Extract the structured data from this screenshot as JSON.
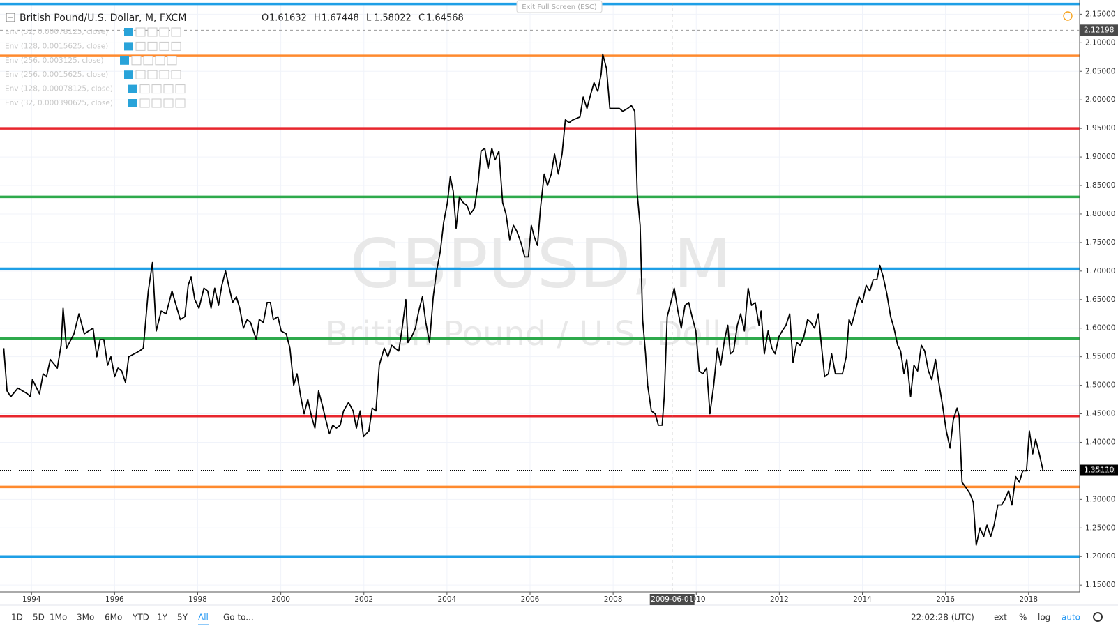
{
  "chart_data": {
    "type": "line",
    "title": "British Pound/U.S. Dollar, M, FXCM",
    "ohlc": [
      {
        "key": "O",
        "value": 1.61632
      },
      {
        "key": "H",
        "value": 1.67448
      },
      {
        "key": "L",
        "value": 1.58022
      },
      {
        "key": "C",
        "value": 1.64568
      }
    ],
    "indicators": [
      "Env (32, 0.00078125, close)",
      "Env (128, 0.0015625, close)",
      "Env (256, 0.003125, close)",
      "Env (256, 0.0015625, close)",
      "Env (128, 0.00078125, close)",
      "Env (32, 0.000390625, close)"
    ],
    "watermark": "GBPUSD, M",
    "watermark_subtitle": "British Pound / U.S. Dollar",
    "exit_button": "Exit Full Screen (ESC)",
    "series": [
      {
        "name": "GBPUSD",
        "color": "#000000",
        "x": [
          1993.33,
          1993.41,
          1993.5,
          1993.67,
          1993.9,
          1993.97,
          1994.02,
          1994.19,
          1994.28,
          1994.36,
          1994.45,
          1994.62,
          1994.71,
          1994.76,
          1994.84,
          1995.02,
          1995.14,
          1995.27,
          1995.48,
          1995.57,
          1995.65,
          1995.74,
          1995.83,
          1995.91,
          1996.0,
          1996.08,
          1996.17,
          1996.26,
          1996.34,
          1996.6,
          1996.69,
          1996.81,
          1996.91,
          1997.0,
          1997.12,
          1997.24,
          1997.38,
          1997.46,
          1997.58,
          1997.69,
          1997.77,
          1997.84,
          1997.93,
          1998.03,
          1998.15,
          1998.24,
          1998.32,
          1998.41,
          1998.5,
          1998.58,
          1998.67,
          1998.76,
          1998.84,
          1998.93,
          1999.01,
          1999.1,
          1999.19,
          1999.27,
          1999.41,
          1999.48,
          1999.58,
          1999.67,
          1999.75,
          1999.82,
          1999.93,
          2000.01,
          2000.13,
          2000.22,
          2000.31,
          2000.39,
          2000.48,
          2000.56,
          2000.65,
          2000.74,
          2000.82,
          2000.91,
          2001.0,
          2001.08,
          2001.17,
          2001.25,
          2001.34,
          2001.43,
          2001.51,
          2001.63,
          2001.74,
          2001.82,
          2001.91,
          2001.99,
          2002.12,
          2002.2,
          2002.29,
          2002.37,
          2002.49,
          2002.58,
          2002.67,
          2002.75,
          2002.84,
          2002.92,
          2003.01,
          2003.06,
          2003.15,
          2003.24,
          2003.32,
          2003.41,
          2003.49,
          2003.58,
          2003.67,
          2003.75,
          2003.84,
          2003.92,
          2004.01,
          2004.08,
          2004.15,
          2004.22,
          2004.3,
          2004.39,
          2004.48,
          2004.56,
          2004.66,
          2004.75,
          2004.82,
          2004.91,
          2004.99,
          2005.08,
          2005.16,
          2005.25,
          2005.34,
          2005.42,
          2005.51,
          2005.6,
          2005.68,
          2005.78,
          2005.87,
          2005.96,
          2006.03,
          2006.1,
          2006.18,
          2006.25,
          2006.34,
          2006.42,
          2006.51,
          2006.59,
          2006.68,
          2006.77,
          2006.85,
          2006.94,
          2007.03,
          2007.2,
          2007.28,
          2007.37,
          2007.46,
          2007.54,
          2007.63,
          2007.71,
          2007.75,
          2007.84,
          2007.92,
          2008.15,
          2008.23,
          2008.35,
          2008.44,
          2008.52,
          2008.58,
          2008.65,
          2008.71,
          2008.78,
          2008.83,
          2008.92,
          2009.01,
          2009.09,
          2009.18,
          2009.23,
          2009.3,
          2009.39,
          2009.47,
          2009.56,
          2009.64,
          2009.73,
          2009.82,
          2009.9,
          2009.99,
          2010.07,
          2010.16,
          2010.25,
          2010.33,
          2010.42,
          2010.51,
          2010.59,
          2010.68,
          2010.76,
          2010.82,
          2010.9,
          2010.99,
          2011.07,
          2011.16,
          2011.25,
          2011.33,
          2011.42,
          2011.51,
          2011.56,
          2011.64,
          2011.73,
          2011.82,
          2011.9,
          2011.99,
          2012.07,
          2012.16,
          2012.25,
          2012.33,
          2012.42,
          2012.5,
          2012.59,
          2012.68,
          2012.76,
          2012.85,
          2012.94,
          2013.0,
          2013.09,
          2013.18,
          2013.26,
          2013.35,
          2013.52,
          2013.61,
          2013.68,
          2013.74,
          2013.83,
          2013.92,
          2014.0,
          2014.09,
          2014.18,
          2014.26,
          2014.35,
          2014.42,
          2014.5,
          2014.59,
          2014.68,
          2014.76,
          2014.85,
          2014.92,
          2015.0,
          2015.07,
          2015.16,
          2015.24,
          2015.33,
          2015.42,
          2015.5,
          2015.59,
          2015.67,
          2015.76,
          2015.85,
          2015.93,
          2016.02,
          2016.11,
          2016.19,
          2016.28,
          2016.33,
          2016.4,
          2016.5,
          2016.59,
          2016.67,
          2016.74,
          2016.83,
          2016.92,
          2017.0,
          2017.09,
          2017.17,
          2017.26,
          2017.35,
          2017.43,
          2017.52,
          2017.6,
          2017.69,
          2017.78,
          2017.86,
          2017.95,
          2018.02,
          2018.1,
          2018.17,
          2018.26,
          2018.35
        ],
        "values": [
          1.565,
          1.49,
          1.48,
          1.495,
          1.485,
          1.48,
          1.51,
          1.485,
          1.52,
          1.515,
          1.545,
          1.53,
          1.57,
          1.635,
          1.565,
          1.59,
          1.625,
          1.59,
          1.6,
          1.55,
          1.58,
          1.58,
          1.535,
          1.55,
          1.515,
          1.53,
          1.525,
          1.505,
          1.55,
          1.56,
          1.565,
          1.665,
          1.715,
          1.595,
          1.63,
          1.625,
          1.665,
          1.645,
          1.615,
          1.62,
          1.675,
          1.69,
          1.65,
          1.635,
          1.67,
          1.665,
          1.635,
          1.67,
          1.64,
          1.675,
          1.7,
          1.67,
          1.645,
          1.655,
          1.635,
          1.6,
          1.615,
          1.61,
          1.58,
          1.615,
          1.61,
          1.645,
          1.645,
          1.615,
          1.62,
          1.595,
          1.59,
          1.565,
          1.5,
          1.52,
          1.48,
          1.45,
          1.475,
          1.445,
          1.425,
          1.49,
          1.465,
          1.44,
          1.415,
          1.43,
          1.425,
          1.43,
          1.455,
          1.47,
          1.455,
          1.425,
          1.455,
          1.41,
          1.42,
          1.46,
          1.455,
          1.535,
          1.565,
          1.55,
          1.57,
          1.565,
          1.56,
          1.6,
          1.65,
          1.575,
          1.585,
          1.6,
          1.63,
          1.655,
          1.61,
          1.575,
          1.655,
          1.7,
          1.735,
          1.785,
          1.82,
          1.865,
          1.84,
          1.775,
          1.83,
          1.82,
          1.815,
          1.8,
          1.81,
          1.855,
          1.91,
          1.915,
          1.88,
          1.915,
          1.895,
          1.91,
          1.82,
          1.8,
          1.755,
          1.78,
          1.77,
          1.75,
          1.725,
          1.725,
          1.78,
          1.76,
          1.745,
          1.81,
          1.87,
          1.85,
          1.87,
          1.905,
          1.87,
          1.905,
          1.965,
          1.96,
          1.965,
          1.97,
          2.005,
          1.985,
          2.01,
          2.03,
          2.015,
          2.045,
          2.08,
          2.055,
          1.985,
          1.985,
          1.98,
          1.985,
          1.99,
          1.98,
          1.835,
          1.78,
          1.615,
          1.555,
          1.5,
          1.455,
          1.45,
          1.43,
          1.43,
          1.48,
          1.62,
          1.645,
          1.67,
          1.63,
          1.6,
          1.64,
          1.645,
          1.62,
          1.595,
          1.525,
          1.52,
          1.53,
          1.45,
          1.5,
          1.565,
          1.535,
          1.58,
          1.605,
          1.555,
          1.56,
          1.605,
          1.625,
          1.595,
          1.67,
          1.64,
          1.645,
          1.605,
          1.63,
          1.555,
          1.595,
          1.565,
          1.555,
          1.585,
          1.595,
          1.605,
          1.625,
          1.54,
          1.575,
          1.57,
          1.585,
          1.615,
          1.61,
          1.6,
          1.625,
          1.58,
          1.515,
          1.52,
          1.555,
          1.52,
          1.52,
          1.55,
          1.615,
          1.605,
          1.63,
          1.655,
          1.645,
          1.675,
          1.665,
          1.685,
          1.685,
          1.71,
          1.69,
          1.66,
          1.62,
          1.6,
          1.57,
          1.56,
          1.52,
          1.545,
          1.48,
          1.535,
          1.525,
          1.57,
          1.56,
          1.525,
          1.51,
          1.545,
          1.5,
          1.465,
          1.42,
          1.39,
          1.44,
          1.46,
          1.445,
          1.33,
          1.32,
          1.31,
          1.295,
          1.22,
          1.25,
          1.235,
          1.255,
          1.235,
          1.255,
          1.29,
          1.29,
          1.3,
          1.315,
          1.29,
          1.34,
          1.33,
          1.35,
          1.35,
          1.42,
          1.38,
          1.405,
          1.38,
          1.35
        ]
      }
    ],
    "hlines": [
      {
        "value": 2.168,
        "color": "#1e9fe6"
      },
      {
        "value": 2.077,
        "color": "#ff8a2e"
      },
      {
        "value": 1.95,
        "color": "#e8262d"
      },
      {
        "value": 1.83,
        "color": "#2eaa4c"
      },
      {
        "value": 1.704,
        "color": "#1e9fe6"
      },
      {
        "value": 1.582,
        "color": "#2eaa4c"
      },
      {
        "value": 1.446,
        "color": "#e8262d"
      },
      {
        "value": 1.322,
        "color": "#ff8a2e"
      },
      {
        "value": 1.2,
        "color": "#1e9fe6"
      }
    ],
    "xlim": [
      1993.24,
      2019.23
    ],
    "ylim": [
      1.138,
      2.17
    ],
    "xticks": [
      1994,
      1996,
      1998,
      2000,
      2002,
      2004,
      2006,
      2008,
      2010,
      2012,
      2014,
      2016,
      2018
    ],
    "yticks": [
      {
        "value": 1.15,
        "label": "1.15000"
      },
      {
        "value": 1.2,
        "label": "1.20000"
      },
      {
        "value": 1.25,
        "label": "1.25000"
      },
      {
        "value": 1.3,
        "label": "1.30000"
      },
      {
        "value": 1.35,
        "label": "1.35000"
      },
      {
        "value": 1.4,
        "label": "1.40000"
      },
      {
        "value": 1.45,
        "label": "1.45000"
      },
      {
        "value": 1.5,
        "label": "1.50000"
      },
      {
        "value": 1.55,
        "label": "1.55000"
      },
      {
        "value": 1.6,
        "label": "1.60000"
      },
      {
        "value": 1.65,
        "label": "1.65000"
      },
      {
        "value": 1.7,
        "label": "1.70000"
      },
      {
        "value": 1.75,
        "label": "1.75000"
      },
      {
        "value": 1.8,
        "label": "1.80000"
      },
      {
        "value": 1.85,
        "label": "1.85000"
      },
      {
        "value": 1.9,
        "label": "1.90000"
      },
      {
        "value": 1.95,
        "label": "1.95000"
      },
      {
        "value": 2.0,
        "label": "2.00000"
      },
      {
        "value": 2.05,
        "label": "2.05000"
      },
      {
        "value": 2.1,
        "label": "2.10000"
      },
      {
        "value": 2.15,
        "label": "2.15000"
      }
    ],
    "last_price": {
      "value": 1.3511,
      "label": "1.35110"
    },
    "crosshair": {
      "x": {
        "value": 2009.42,
        "label": "2009-06-01"
      },
      "y": 2.12198
    },
    "grid": true,
    "toolbar": [
      "1D",
      "5D",
      "1Mo",
      "3Mo",
      "6Mo",
      "YTD",
      "1Y",
      "5Y",
      "All",
      "Go to..."
    ],
    "toolbar_right": [
      "22:02:28 (UTC)",
      "ext",
      "%",
      "log",
      "auto"
    ]
  }
}
